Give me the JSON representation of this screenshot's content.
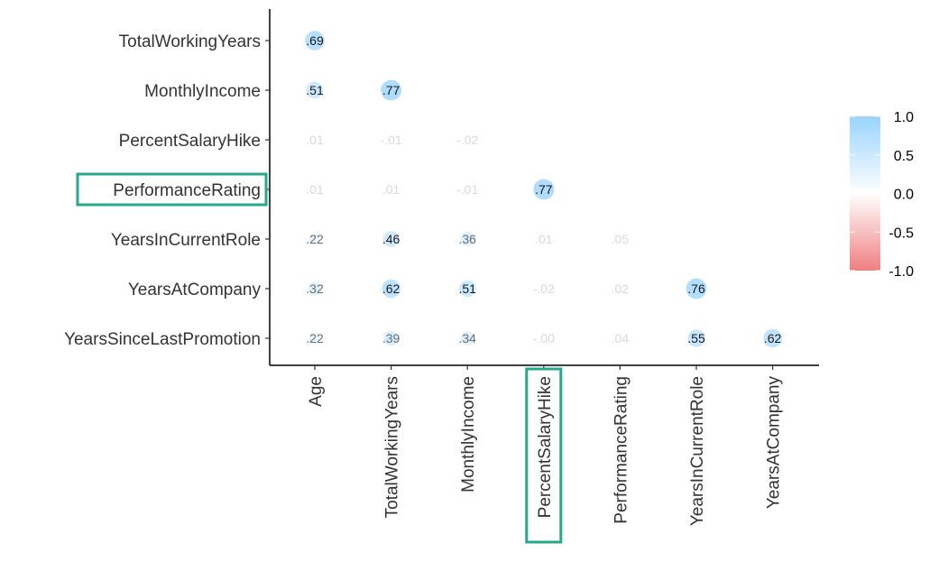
{
  "chart_data": {
    "type": "heatmap",
    "style": "lower-triangle correlation matrix with circles sized by |r|",
    "rows": [
      "TotalWorkingYears",
      "MonthlyIncome",
      "PercentSalaryHike",
      "PerformanceRating",
      "YearsInCurrentRole",
      "YearsAtCompany",
      "YearsSinceLastPromotion"
    ],
    "columns": [
      "Age",
      "TotalWorkingYears",
      "MonthlyIncome",
      "PercentSalaryHike",
      "PerformanceRating",
      "YearsInCurrentRole",
      "YearsAtCompany"
    ],
    "values": [
      [
        0.69,
        null,
        null,
        null,
        null,
        null,
        null
      ],
      [
        0.51,
        0.77,
        null,
        null,
        null,
        null,
        null
      ],
      [
        0.01,
        -0.01,
        -0.02,
        null,
        null,
        null,
        null
      ],
      [
        0.01,
        0.01,
        -0.01,
        0.77,
        null,
        null,
        null
      ],
      [
        0.22,
        0.46,
        0.36,
        0.01,
        0.05,
        null,
        null
      ],
      [
        0.32,
        0.62,
        0.51,
        -0.02,
        0.02,
        0.76,
        null
      ],
      [
        0.22,
        0.39,
        0.34,
        -0.0,
        0.04,
        0.55,
        0.62
      ]
    ],
    "labels": [
      [
        ".69",
        null,
        null,
        null,
        null,
        null,
        null
      ],
      [
        ".51",
        ".77",
        null,
        null,
        null,
        null,
        null
      ],
      [
        ".01",
        "-.01",
        "-.02",
        null,
        null,
        null,
        null
      ],
      [
        ".01",
        ".01",
        "-.01",
        ".77",
        null,
        null,
        null
      ],
      [
        ".22",
        ".46",
        ".36",
        ".01",
        ".05",
        null,
        null
      ],
      [
        ".32",
        ".62",
        ".51",
        "-.02",
        ".02",
        ".76",
        null
      ],
      [
        ".22",
        ".39",
        ".34",
        "-.00",
        ".04",
        ".55",
        ".62"
      ]
    ],
    "legend": {
      "ticks": [
        "1.0",
        "0.5",
        "0.0",
        "-0.5",
        "-1.0"
      ],
      "tick_values": [
        1.0,
        0.5,
        0.0,
        -0.5,
        -1.0
      ],
      "range": [
        -1.0,
        1.0
      ],
      "position": "right"
    },
    "colors": {
      "high": "#99d3ff",
      "mid": "#ffffff",
      "low": "#f07f7f",
      "highlight_box": "#26a88a"
    },
    "highlighted_row": "PerformanceRating",
    "highlighted_column": "PercentSalaryHike",
    "grid": false
  }
}
